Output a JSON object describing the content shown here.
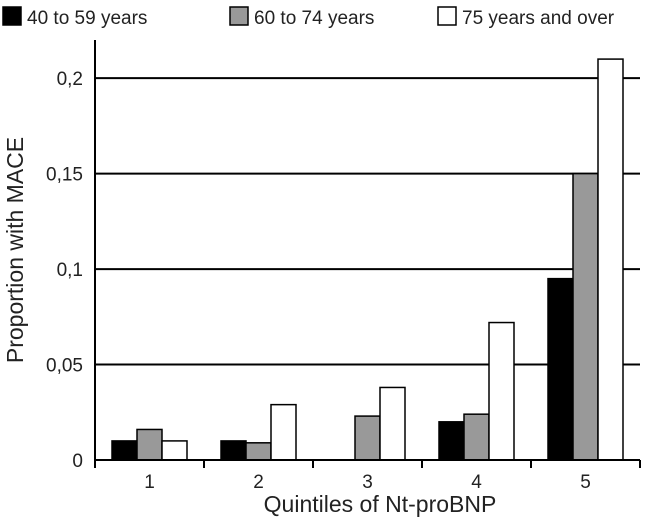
{
  "chart_data": {
    "type": "bar",
    "title": "",
    "xlabel": "Quintiles of Nt-proBNP",
    "ylabel": "Proportion with MACE",
    "categories": [
      "1",
      "2",
      "3",
      "4",
      "5"
    ],
    "ylim": [
      0,
      0.22
    ],
    "yticks": [
      0,
      0.05,
      0.1,
      0.15,
      0.2
    ],
    "ytick_labels": [
      "0",
      "0,05",
      "0,1",
      "0,15",
      "0,2"
    ],
    "grid": true,
    "legend_position": "top",
    "series": [
      {
        "name": "40 to 59 years",
        "color": "#000000",
        "values": [
          0.01,
          0.01,
          0.0,
          0.02,
          0.095
        ]
      },
      {
        "name": "60 to 74 years",
        "color": "#999999",
        "values": [
          0.016,
          0.009,
          0.023,
          0.024,
          0.15
        ]
      },
      {
        "name": "75 years and over",
        "color": "#ffffff",
        "values": [
          0.01,
          0.029,
          0.038,
          0.072,
          0.21
        ]
      }
    ]
  }
}
